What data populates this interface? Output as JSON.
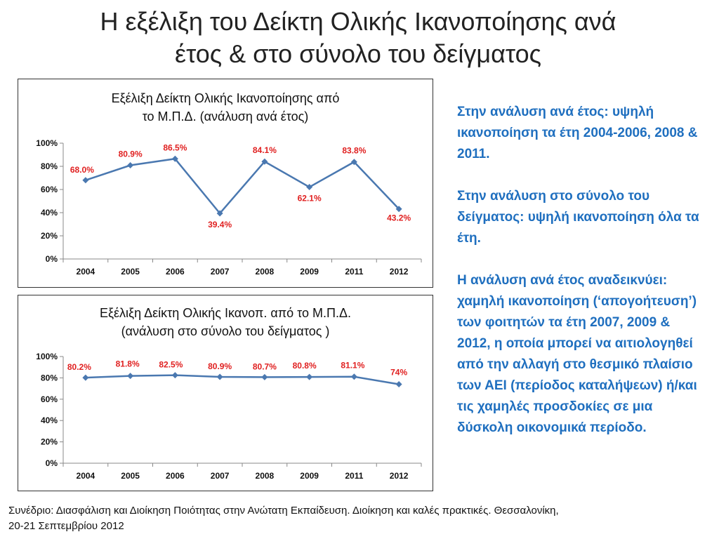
{
  "slide": {
    "title_line1": "Η εξέλιξη του Δείκτη Ολικής Ικανοποίησης ανά",
    "title_line2": "έτος & στο σύνολο του δείγματος"
  },
  "chart_data": [
    {
      "type": "line",
      "title_line1": "Εξέλιξη Δείκτη Ολικής Ικανοποίησης από",
      "title_line2": "το Μ.Π.Δ. (ανάλυση ανά έτος)",
      "categories": [
        "2004",
        "2005",
        "2006",
        "2007",
        "2008",
        "2009",
        "2011",
        "2012"
      ],
      "values": [
        68.0,
        80.9,
        86.5,
        39.4,
        84.1,
        62.1,
        83.8,
        43.2
      ],
      "data_labels": [
        "68.0%",
        "80.9%",
        "86.5%",
        "39.4%",
        "84.1%",
        "62.1%",
        "83.8%",
        "43.2%"
      ],
      "y_ticks": [
        "0%",
        "20%",
        "40%",
        "60%",
        "80%",
        "100%"
      ],
      "ylim": [
        0,
        100
      ],
      "line_color": "#4a78b0",
      "label_color": "#e02020",
      "grid": false
    },
    {
      "type": "line",
      "title_line1": "Εξέλιξη Δείκτη Ολικής Ικανοπ. από το Μ.Π.Δ.",
      "title_line2": "(ανάλυση στο σύνολο του δείγματος )",
      "categories": [
        "2004",
        "2005",
        "2006",
        "2007",
        "2008",
        "2009",
        "2011",
        "2012"
      ],
      "values": [
        80.2,
        81.8,
        82.5,
        80.9,
        80.7,
        80.8,
        81.1,
        74
      ],
      "data_labels": [
        "80.2%",
        "81.8%",
        "82.5%",
        "80.9%",
        "80.7%",
        "80.8%",
        "81.1%",
        "74%"
      ],
      "y_ticks": [
        "0%",
        "20%",
        "40%",
        "60%",
        "80%",
        "100%"
      ],
      "ylim": [
        0,
        100
      ],
      "line_color": "#4a78b0",
      "label_color": "#e02020",
      "grid": false
    }
  ],
  "side": {
    "p1": "Στην ανάλυση ανά έτος: υψηλή ικανοποίηση τα έτη 2004-2006, 2008 & 2011.",
    "p2": "Στην ανάλυση στο σύνολο του δείγματος: υψηλή ικανοποίηση όλα τα έτη.",
    "p3": "Η ανάλυση ανά έτος αναδεικνύει: χαμηλή ικανοποίηση (‘απογοήτευση’) των φοιτητών τα έτη 2007, 2009 & 2012, η οποία μπορεί να αιτιολογηθεί από την αλλαγή στο θεσμικό πλαίσιο των ΑΕΙ (περίοδος καταλήψεων) ή/και τις χαμηλές  προσδοκίες σε μια δύσκολη οικονομικά περίοδο."
  },
  "footer": {
    "line1": "Συνέδριο: Διασφάλιση και Διοίκηση Ποιότητας στην Ανώτατη Εκπαίδευση. Διοίκηση και καλές πρακτικές. Θεσσαλονίκη,",
    "line2": "20-21 Σεπτεμβρίου 2012"
  }
}
